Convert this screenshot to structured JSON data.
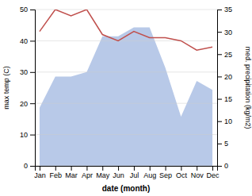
{
  "chart_data": {
    "type": "line",
    "categories": [
      "Jan",
      "Feb",
      "Mar",
      "Apr",
      "May",
      "Jun",
      "Jul",
      "Aug",
      "Sep",
      "Oct",
      "Nov",
      "Dec"
    ],
    "series": [
      {
        "type": "line",
        "color": "#c0504d",
        "values": [
          43,
          50,
          48,
          50,
          42,
          40,
          43,
          41,
          41,
          40,
          37,
          38
        ]
      },
      {
        "type": "area",
        "axis": "y2",
        "color": "#b8c9e8",
        "values": [
          13,
          20,
          20,
          21,
          29,
          29,
          31,
          31,
          22,
          11,
          19,
          17
        ]
      }
    ],
    "xlabel": "date (month)",
    "ylabel": "max temp (C)",
    "y2label": "med. precipitation (kg/m2)",
    "ylim": [
      0,
      50
    ],
    "yticks": [
      0,
      10,
      20,
      30,
      40,
      50
    ],
    "y2lim": [
      0,
      35
    ],
    "y2ticks": [
      0,
      5,
      10,
      15,
      20,
      25,
      30,
      35
    ],
    "grid": true
  }
}
